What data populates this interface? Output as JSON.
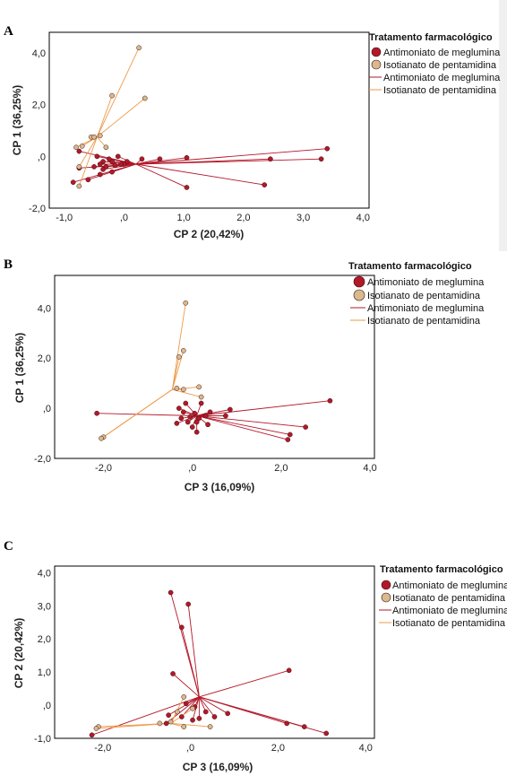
{
  "colors": {
    "antimoniato": "#b3182a",
    "isotianato": "#d9b98e",
    "isotianato_line": "#ee9a4a",
    "point_stroke": "#3a1010",
    "frame": "#000000"
  },
  "legend": {
    "title": "Tratamento farmacológico",
    "marker_entries": [
      "Antimoniato de meglumina",
      "Isotianato de pentamidina"
    ],
    "line_entries": [
      "Antimoniato de meglumina",
      "Isotianato de pentamidina"
    ]
  },
  "chart_data": [
    {
      "panel": "A",
      "type": "scatter",
      "xlabel": "CP 2 (20,42%)",
      "ylabel": "CP 1 (36,25%)",
      "xlim": [
        -1.25,
        4.1
      ],
      "ylim": [
        -2.0,
        4.8
      ],
      "xticks": [
        -1.0,
        0.0,
        1.0,
        2.0,
        3.0,
        4.0
      ],
      "xtick_labels": [
        "-1,0",
        ",0",
        "1,0",
        "2,0",
        "3,0",
        "4,0"
      ],
      "yticks": [
        -2.0,
        0.0,
        2.0,
        4.0
      ],
      "ytick_labels": [
        "-2,0",
        ",0",
        "2,0",
        "4,0"
      ],
      "legend_position": "top-right",
      "series": [
        {
          "name": "Antimoniato de meglumina",
          "centroid": [
            0.2,
            -0.3
          ],
          "points": [
            [
              3.4,
              0.3
            ],
            [
              3.3,
              -0.1
            ],
            [
              2.45,
              -0.1
            ],
            [
              2.35,
              -1.1
            ],
            [
              1.05,
              -0.05
            ],
            [
              1.05,
              -1.2
            ],
            [
              0.6,
              -0.1
            ],
            [
              0.3,
              -0.1
            ],
            [
              0.05,
              -0.2
            ],
            [
              0.0,
              -0.3
            ],
            [
              -0.05,
              -0.3
            ],
            [
              -0.1,
              0.0
            ],
            [
              -0.15,
              -0.35
            ],
            [
              -0.2,
              -0.2
            ],
            [
              -0.2,
              -0.6
            ],
            [
              -0.25,
              -0.1
            ],
            [
              -0.3,
              -0.4
            ],
            [
              -0.35,
              -0.2
            ],
            [
              -0.35,
              -0.5
            ],
            [
              -0.4,
              -0.3
            ],
            [
              -0.4,
              -0.7
            ],
            [
              -0.45,
              0.0
            ],
            [
              -0.5,
              -0.4
            ],
            [
              -0.6,
              -0.9
            ],
            [
              -0.75,
              0.2
            ],
            [
              -0.75,
              -0.45
            ],
            [
              -0.85,
              -1.0
            ]
          ]
        },
        {
          "name": "Isotianato de pentamidina",
          "centroid": [
            -0.45,
            0.75
          ],
          "points": [
            [
              0.25,
              4.2
            ],
            [
              -0.2,
              2.35
            ],
            [
              0.35,
              2.25
            ],
            [
              -0.55,
              0.75
            ],
            [
              -0.5,
              0.75
            ],
            [
              -0.4,
              0.8
            ],
            [
              -0.3,
              0.35
            ],
            [
              -0.7,
              0.4
            ],
            [
              -0.8,
              0.35
            ],
            [
              -0.75,
              -0.4
            ],
            [
              -0.75,
              -1.15
            ]
          ]
        }
      ]
    },
    {
      "panel": "B",
      "type": "scatter",
      "xlabel": "CP 3 (16,09%)",
      "ylabel": "CP 1 (36,25%)",
      "xlim": [
        -3.1,
        4.1
      ],
      "ylim": [
        -2.0,
        5.3
      ],
      "xticks": [
        -2.0,
        0.0,
        2.0,
        4.0
      ],
      "xtick_labels": [
        "-2,0",
        ",0",
        "2,0",
        "4,0"
      ],
      "yticks": [
        -2.0,
        0.0,
        2.0,
        4.0
      ],
      "ytick_labels": [
        "-2,0",
        ",0",
        "2,0",
        "4,0"
      ],
      "legend_position": "top-right",
      "series": [
        {
          "name": "Antimoniato de meglumina",
          "centroid": [
            0.1,
            -0.3
          ],
          "points": [
            [
              3.1,
              0.3
            ],
            [
              2.55,
              -0.75
            ],
            [
              2.2,
              -1.05
            ],
            [
              2.15,
              -1.25
            ],
            [
              0.85,
              -0.05
            ],
            [
              0.75,
              -0.3
            ],
            [
              0.4,
              -0.15
            ],
            [
              0.35,
              -0.65
            ],
            [
              0.3,
              -0.3
            ],
            [
              0.2,
              0.2
            ],
            [
              0.15,
              -0.4
            ],
            [
              0.1,
              -0.55
            ],
            [
              0.1,
              -0.95
            ],
            [
              0.05,
              -0.2
            ],
            [
              0.0,
              -0.75
            ],
            [
              -0.05,
              -0.35
            ],
            [
              -0.1,
              -0.55
            ],
            [
              -0.15,
              0.2
            ],
            [
              -0.2,
              -0.15
            ],
            [
              -0.25,
              -0.4
            ],
            [
              -0.3,
              0.0
            ],
            [
              -0.35,
              -0.6
            ],
            [
              -2.15,
              -0.2
            ]
          ]
        },
        {
          "name": "Isotianato de pentamidina",
          "centroid": [
            -0.45,
            0.75
          ],
          "points": [
            [
              -0.15,
              4.2
            ],
            [
              -0.2,
              2.3
            ],
            [
              -0.3,
              2.05
            ],
            [
              -0.35,
              0.8
            ],
            [
              -0.2,
              0.75
            ],
            [
              0.15,
              0.85
            ],
            [
              0.2,
              0.45
            ],
            [
              -2.0,
              -1.15
            ],
            [
              -2.05,
              -1.2
            ]
          ]
        }
      ]
    },
    {
      "panel": "C",
      "type": "scatter",
      "xlabel": "CP 3 (16,09%)",
      "ylabel": "CP 2 (20,42%)",
      "xlim": [
        -3.1,
        4.2
      ],
      "ylim": [
        -1.0,
        4.2
      ],
      "xticks": [
        -2.0,
        0.0,
        2.0,
        4.0
      ],
      "xtick_labels": [
        "-2,0",
        ",0",
        "2,0",
        "4,0"
      ],
      "yticks": [
        -1.0,
        0.0,
        1.0,
        2.0,
        3.0,
        4.0
      ],
      "ytick_labels": [
        "-1,0",
        ",0",
        "1,0",
        "2,0",
        "3,0",
        "4,0"
      ],
      "legend_position": "top-right",
      "series": [
        {
          "name": "Antimoniato de meglumina",
          "centroid": [
            0.2,
            0.25
          ],
          "points": [
            [
              2.25,
              1.05
            ],
            [
              3.1,
              -0.85
            ],
            [
              2.6,
              -0.65
            ],
            [
              2.2,
              -0.55
            ],
            [
              0.85,
              -0.25
            ],
            [
              0.55,
              -0.35
            ],
            [
              0.35,
              -0.2
            ],
            [
              0.2,
              -0.4
            ],
            [
              0.1,
              -0.05
            ],
            [
              0.05,
              -0.45
            ],
            [
              -0.05,
              3.05
            ],
            [
              -0.2,
              2.35
            ],
            [
              -0.4,
              0.95
            ],
            [
              -0.45,
              3.4
            ],
            [
              -0.5,
              -0.3
            ],
            [
              -0.55,
              -0.55
            ],
            [
              -0.2,
              -0.35
            ],
            [
              -0.1,
              0.05
            ],
            [
              -2.25,
              -0.9
            ]
          ]
        },
        {
          "name": "Isotianato de pentamidina",
          "centroid": [
            -0.45,
            -0.55
          ],
          "points": [
            [
              -2.1,
              -0.65
            ],
            [
              -2.15,
              -0.7
            ],
            [
              -0.7,
              -0.55
            ],
            [
              -0.45,
              -0.5
            ],
            [
              -0.3,
              -0.2
            ],
            [
              -0.15,
              0.25
            ],
            [
              0.05,
              -0.1
            ],
            [
              0.45,
              -0.65
            ],
            [
              -0.15,
              -0.65
            ]
          ]
        }
      ]
    }
  ]
}
